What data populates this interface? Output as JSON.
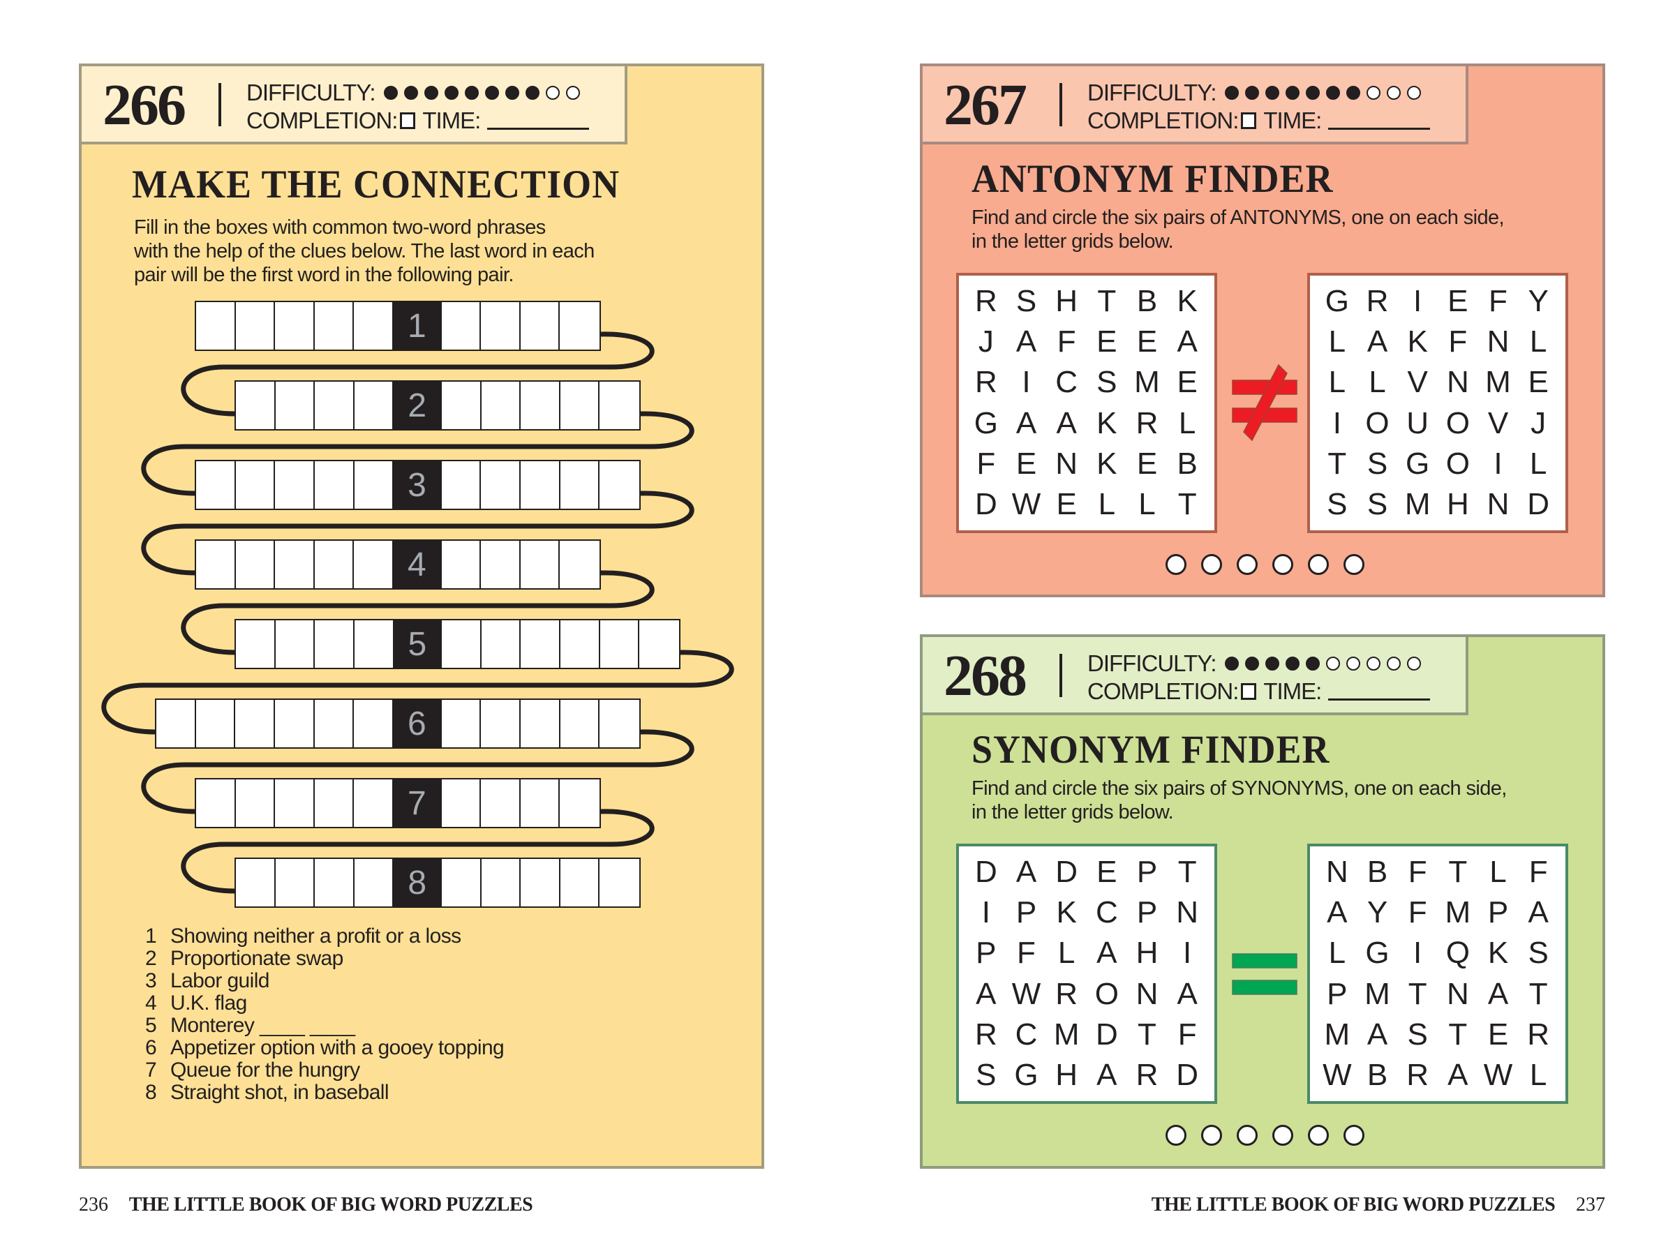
{
  "colors": {
    "puzzle_266_bg": "#fde095",
    "puzzle_266_header_bg": "#fef0cc",
    "puzzle_267_bg": "#f8ab8e",
    "puzzle_267_header_bg": "#fbc6ae",
    "puzzle_268_bg": "#cde096",
    "puzzle_268_header_bg": "#e2eec6",
    "not_equal_sign": "#ed1c24",
    "equal_sign": "#00a651"
  },
  "labels": {
    "difficulty": "DIFFICULTY:",
    "completion": "COMPLETION:",
    "time": "TIME:"
  },
  "puzzles": [
    {
      "number": "266",
      "difficulty": 8,
      "difficulty_max": 10,
      "title": "MAKE THE CONNECTION",
      "description": [
        "Fill in the boxes with common two-word phrases",
        "with the help of the clues below. The last word in each",
        "pair will be the first word in the following pair."
      ],
      "rows": [
        {
          "label": "1",
          "left_boxes": 5,
          "right_boxes": 4
        },
        {
          "label": "2",
          "left_boxes": 4,
          "right_boxes": 5
        },
        {
          "label": "3",
          "left_boxes": 5,
          "right_boxes": 5
        },
        {
          "label": "4",
          "left_boxes": 5,
          "right_boxes": 4
        },
        {
          "label": "5",
          "left_boxes": 4,
          "right_boxes": 6
        },
        {
          "label": "6",
          "left_boxes": 6,
          "right_boxes": 5
        },
        {
          "label": "7",
          "left_boxes": 5,
          "right_boxes": 4
        },
        {
          "label": "8",
          "left_boxes": 4,
          "right_boxes": 5
        }
      ],
      "clues": [
        {
          "n": "1",
          "text": "Showing neither a profit or a loss"
        },
        {
          "n": "2",
          "text": "Proportionate swap"
        },
        {
          "n": "3",
          "text": "Labor guild"
        },
        {
          "n": "4",
          "text": "U.K. flag"
        },
        {
          "n": "5",
          "text": "Monterey ____ ____"
        },
        {
          "n": "6",
          "text": "Appetizer option with a gooey topping"
        },
        {
          "n": "7",
          "text": "Queue for the hungry"
        },
        {
          "n": "8",
          "text": "Straight shot, in baseball"
        }
      ]
    },
    {
      "number": "267",
      "difficulty": 7,
      "difficulty_max": 10,
      "title": "ANTONYM FINDER",
      "description": [
        "Find and circle the six pairs of ANTONYMS, one on each side,",
        "in the letter grids below."
      ],
      "symbol": "not-equal",
      "left_grid": [
        "RSHTBK",
        "JAFEEA",
        "RICSME",
        "GAAKRL",
        "FENKEB",
        "DWELLT"
      ],
      "right_grid": [
        "GRIEFY",
        "LAKFNL",
        "LLVNME",
        "IOUOVJ",
        "TSGOIL",
        "SSMHND"
      ],
      "answer_circles": 6,
      "answers_found": 0
    },
    {
      "number": "268",
      "difficulty": 5,
      "difficulty_max": 10,
      "title": "SYNONYM FINDER",
      "description": [
        "Find and circle the six pairs of SYNONYMS, one on each side,",
        "in the letter grids below."
      ],
      "symbol": "equal",
      "left_grid": [
        "DADEPT",
        "IPKCPN",
        "PFLAHI",
        "AWRONA",
        "RCMDTF",
        "SGHARD"
      ],
      "right_grid": [
        "NBFTLF",
        "AYFMPA",
        "LGIQKS",
        "PMTNAT",
        "MASTER",
        "WBRAWL"
      ],
      "answer_circles": 6,
      "answers_found": 0
    }
  ],
  "footer": {
    "left_page": "236",
    "right_page": "237",
    "book_title": "THE LITTLE BOOK OF BIG WORD PUZZLES"
  }
}
